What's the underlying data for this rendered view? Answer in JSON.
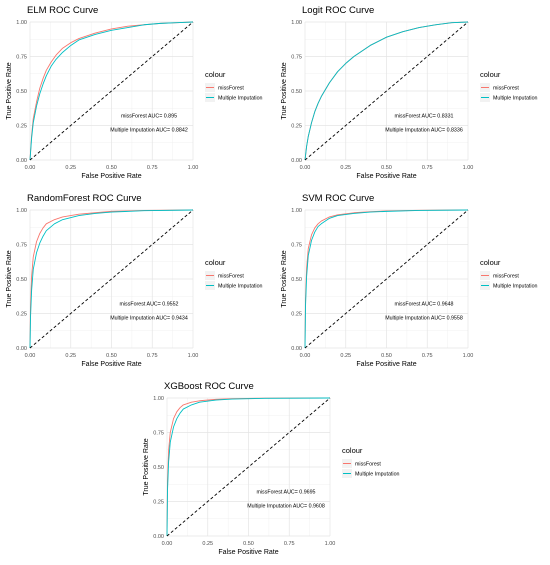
{
  "chart_data": [
    {
      "type": "line",
      "title": "ELM ROC Curve",
      "xlabel": "False Positive Rate",
      "ylabel": "True Positive Rate",
      "xlim": [
        0,
        1
      ],
      "ylim": [
        0,
        1
      ],
      "xticks": [
        "0.00",
        "0.25",
        "0.50",
        "0.75",
        "1.00"
      ],
      "yticks": [
        "0.00",
        "0.25",
        "0.50",
        "0.75",
        "1.00"
      ],
      "grid": true,
      "legend": {
        "title": "colour",
        "position": "right"
      },
      "series": [
        {
          "name": "missForest",
          "color": "#F8766D",
          "points": [
            [
              0,
              0
            ],
            [
              0.01,
              0.18
            ],
            [
              0.02,
              0.3
            ],
            [
              0.04,
              0.42
            ],
            [
              0.06,
              0.52
            ],
            [
              0.08,
              0.59
            ],
            [
              0.1,
              0.65
            ],
            [
              0.13,
              0.71
            ],
            [
              0.16,
              0.76
            ],
            [
              0.2,
              0.81
            ],
            [
              0.25,
              0.85
            ],
            [
              0.3,
              0.88
            ],
            [
              0.4,
              0.92
            ],
            [
              0.5,
              0.95
            ],
            [
              0.6,
              0.97
            ],
            [
              0.7,
              0.98
            ],
            [
              0.8,
              0.99
            ],
            [
              0.9,
              0.995
            ],
            [
              1,
              1
            ]
          ]
        },
        {
          "name": "Multiple Imputation",
          "color": "#00BFC4",
          "points": [
            [
              0,
              0
            ],
            [
              0.01,
              0.16
            ],
            [
              0.02,
              0.27
            ],
            [
              0.04,
              0.39
            ],
            [
              0.06,
              0.48
            ],
            [
              0.08,
              0.55
            ],
            [
              0.1,
              0.61
            ],
            [
              0.13,
              0.68
            ],
            [
              0.16,
              0.73
            ],
            [
              0.2,
              0.78
            ],
            [
              0.25,
              0.83
            ],
            [
              0.3,
              0.87
            ],
            [
              0.4,
              0.91
            ],
            [
              0.5,
              0.94
            ],
            [
              0.6,
              0.96
            ],
            [
              0.7,
              0.98
            ],
            [
              0.8,
              0.99
            ],
            [
              0.9,
              0.995
            ],
            [
              1,
              1
            ]
          ]
        }
      ],
      "annotations": [
        "missForest AUC= 0.895",
        "Multiple Imputation AUC= 0.8842"
      ]
    },
    {
      "type": "line",
      "title": "Logit ROC Curve",
      "xlabel": "False Positive Rate",
      "ylabel": "True Positive Rate",
      "xlim": [
        0,
        1
      ],
      "ylim": [
        0,
        1
      ],
      "xticks": [
        "0.00",
        "0.25",
        "0.50",
        "0.75",
        "1.00"
      ],
      "yticks": [
        "0.00",
        "0.25",
        "0.50",
        "0.75",
        "1.00"
      ],
      "grid": true,
      "legend": {
        "title": "colour",
        "position": "right"
      },
      "series": [
        {
          "name": "missForest",
          "color": "#F8766D",
          "points": [
            [
              0,
              0
            ],
            [
              0.01,
              0.1
            ],
            [
              0.02,
              0.17
            ],
            [
              0.04,
              0.27
            ],
            [
              0.06,
              0.35
            ],
            [
              0.08,
              0.41
            ],
            [
              0.1,
              0.46
            ],
            [
              0.15,
              0.56
            ],
            [
              0.2,
              0.64
            ],
            [
              0.25,
              0.7
            ],
            [
              0.3,
              0.75
            ],
            [
              0.4,
              0.83
            ],
            [
              0.5,
              0.89
            ],
            [
              0.6,
              0.93
            ],
            [
              0.7,
              0.96
            ],
            [
              0.8,
              0.98
            ],
            [
              0.9,
              0.995
            ],
            [
              1,
              1
            ]
          ]
        },
        {
          "name": "Multiple Imputation",
          "color": "#00BFC4",
          "points": [
            [
              0,
              0
            ],
            [
              0.01,
              0.1
            ],
            [
              0.02,
              0.17
            ],
            [
              0.04,
              0.27
            ],
            [
              0.06,
              0.35
            ],
            [
              0.08,
              0.41
            ],
            [
              0.1,
              0.46
            ],
            [
              0.15,
              0.56
            ],
            [
              0.2,
              0.64
            ],
            [
              0.25,
              0.7
            ],
            [
              0.3,
              0.75
            ],
            [
              0.4,
              0.83
            ],
            [
              0.5,
              0.89
            ],
            [
              0.6,
              0.93
            ],
            [
              0.7,
              0.96
            ],
            [
              0.8,
              0.98
            ],
            [
              0.9,
              0.995
            ],
            [
              1,
              1
            ]
          ]
        }
      ],
      "annotations": [
        "missForest AUC= 0.8331",
        "Multiple Imputation AUC= 0.8336"
      ]
    },
    {
      "type": "line",
      "title": "RandomForest ROC Curve",
      "xlabel": "False Positive Rate",
      "ylabel": "True Positive Rate",
      "xlim": [
        0,
        1
      ],
      "ylim": [
        0,
        1
      ],
      "xticks": [
        "0.00",
        "0.25",
        "0.50",
        "0.75",
        "1.00"
      ],
      "yticks": [
        "0.00",
        "0.25",
        "0.50",
        "0.75",
        "1.00"
      ],
      "grid": true,
      "legend": {
        "title": "colour",
        "position": "right"
      },
      "series": [
        {
          "name": "missForest",
          "color": "#F8766D",
          "points": [
            [
              0,
              0
            ],
            [
              0.003,
              0.3
            ],
            [
              0.01,
              0.52
            ],
            [
              0.02,
              0.66
            ],
            [
              0.04,
              0.77
            ],
            [
              0.06,
              0.83
            ],
            [
              0.08,
              0.87
            ],
            [
              0.1,
              0.9
            ],
            [
              0.15,
              0.93
            ],
            [
              0.2,
              0.95
            ],
            [
              0.3,
              0.97
            ],
            [
              0.4,
              0.98
            ],
            [
              0.5,
              0.99
            ],
            [
              0.7,
              0.997
            ],
            [
              1,
              1
            ]
          ]
        },
        {
          "name": "Multiple Imputation",
          "color": "#00BFC4",
          "points": [
            [
              0,
              0
            ],
            [
              0.003,
              0.22
            ],
            [
              0.01,
              0.42
            ],
            [
              0.02,
              0.57
            ],
            [
              0.04,
              0.69
            ],
            [
              0.06,
              0.76
            ],
            [
              0.08,
              0.81
            ],
            [
              0.1,
              0.85
            ],
            [
              0.15,
              0.9
            ],
            [
              0.2,
              0.93
            ],
            [
              0.3,
              0.96
            ],
            [
              0.4,
              0.975
            ],
            [
              0.5,
              0.985
            ],
            [
              0.7,
              0.995
            ],
            [
              1,
              1
            ]
          ]
        }
      ],
      "annotations": [
        "missForest AUC= 0.9552",
        "Multiple Imputation AUC= 0.9434"
      ]
    },
    {
      "type": "line",
      "title": "SVM ROC Curve",
      "xlabel": "False Positive Rate",
      "ylabel": "True Positive Rate",
      "xlim": [
        0,
        1
      ],
      "ylim": [
        0,
        1
      ],
      "xticks": [
        "0.00",
        "0.25",
        "0.50",
        "0.75",
        "1.00"
      ],
      "yticks": [
        "0.00",
        "0.25",
        "0.50",
        "0.75",
        "1.00"
      ],
      "grid": true,
      "legend": {
        "title": "colour",
        "position": "right"
      },
      "series": [
        {
          "name": "missForest",
          "color": "#F8766D",
          "points": [
            [
              0,
              0
            ],
            [
              0.003,
              0.35
            ],
            [
              0.01,
              0.58
            ],
            [
              0.02,
              0.72
            ],
            [
              0.04,
              0.82
            ],
            [
              0.06,
              0.87
            ],
            [
              0.08,
              0.9
            ],
            [
              0.1,
              0.92
            ],
            [
              0.15,
              0.95
            ],
            [
              0.2,
              0.965
            ],
            [
              0.3,
              0.98
            ],
            [
              0.4,
              0.988
            ],
            [
              0.5,
              0.993
            ],
            [
              0.7,
              0.998
            ],
            [
              1,
              1
            ]
          ]
        },
        {
          "name": "Multiple Imputation",
          "color": "#00BFC4",
          "points": [
            [
              0,
              0
            ],
            [
              0.003,
              0.3
            ],
            [
              0.01,
              0.52
            ],
            [
              0.02,
              0.67
            ],
            [
              0.04,
              0.78
            ],
            [
              0.06,
              0.84
            ],
            [
              0.08,
              0.88
            ],
            [
              0.1,
              0.9
            ],
            [
              0.15,
              0.94
            ],
            [
              0.2,
              0.96
            ],
            [
              0.3,
              0.975
            ],
            [
              0.4,
              0.985
            ],
            [
              0.5,
              0.99
            ],
            [
              0.7,
              0.997
            ],
            [
              1,
              1
            ]
          ]
        }
      ],
      "annotations": [
        "missForest AUC= 0.9648",
        "Multiple Imputation AUC= 0.9558"
      ]
    },
    {
      "type": "line",
      "title": "XGBoost ROC Curve",
      "xlabel": "False Positive Rate",
      "ylabel": "True Positive Rate",
      "xlim": [
        0,
        1
      ],
      "ylim": [
        0,
        1
      ],
      "xticks": [
        "0.00",
        "0.25",
        "0.50",
        "0.75",
        "1.00"
      ],
      "yticks": [
        "0.00",
        "0.25",
        "0.50",
        "0.75",
        "1.00"
      ],
      "grid": true,
      "legend": {
        "title": "colour",
        "position": "right"
      },
      "series": [
        {
          "name": "missForest",
          "color": "#F8766D",
          "points": [
            [
              0,
              0
            ],
            [
              0.003,
              0.4
            ],
            [
              0.01,
              0.62
            ],
            [
              0.02,
              0.75
            ],
            [
              0.04,
              0.85
            ],
            [
              0.06,
              0.9
            ],
            [
              0.08,
              0.93
            ],
            [
              0.1,
              0.95
            ],
            [
              0.15,
              0.97
            ],
            [
              0.2,
              0.98
            ],
            [
              0.3,
              0.99
            ],
            [
              0.4,
              0.995
            ],
            [
              0.6,
              0.999
            ],
            [
              1,
              1
            ]
          ]
        },
        {
          "name": "Multiple Imputation",
          "color": "#00BFC4",
          "points": [
            [
              0,
              0
            ],
            [
              0.003,
              0.33
            ],
            [
              0.01,
              0.54
            ],
            [
              0.02,
              0.68
            ],
            [
              0.04,
              0.79
            ],
            [
              0.06,
              0.85
            ],
            [
              0.08,
              0.89
            ],
            [
              0.1,
              0.92
            ],
            [
              0.15,
              0.95
            ],
            [
              0.2,
              0.97
            ],
            [
              0.3,
              0.985
            ],
            [
              0.4,
              0.992
            ],
            [
              0.6,
              0.998
            ],
            [
              1,
              1
            ]
          ]
        }
      ],
      "annotations": [
        "missForest AUC= 0.9695",
        "Multiple Imputation AUC= 0.9608"
      ]
    }
  ]
}
